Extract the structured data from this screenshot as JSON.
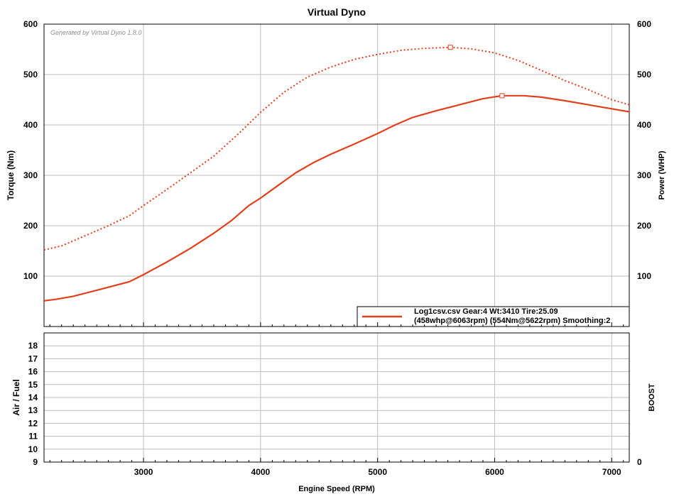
{
  "chart_data": [
    {
      "type": "line",
      "title": "Virtual Dyno",
      "watermark": "Generated by Virtual Dyno 1.8.0",
      "xlabel": "",
      "ylabel_left": "Torque (Nm)",
      "ylabel_right": "Power (WHP)",
      "xlim": [
        2150,
        7150
      ],
      "ylim": [
        0,
        600
      ],
      "x_ticks": [
        3000,
        4000,
        5000,
        6000,
        7000
      ],
      "y_ticks_left": [
        100,
        200,
        300,
        400,
        500,
        600
      ],
      "y_ticks_right": [
        100,
        200,
        300,
        400,
        500,
        600
      ],
      "grid": true,
      "legend_position": "bottom-right",
      "legend": {
        "line1": "Log1csv.csv Gear:4 Wt:3410 Tire:25.09",
        "line2": "(458whp@6063rpm)  (554Nm@5622rpm)  Smoothing:2"
      },
      "color": "#e0401c",
      "series": [
        {
          "style": "solid",
          "x": [
            2150,
            2250,
            2400,
            2600,
            2880,
            3000,
            3200,
            3400,
            3600,
            3750,
            3900,
            4000,
            4150,
            4300,
            4450,
            4600,
            4800,
            5000,
            5150,
            5300,
            5500,
            5700,
            5900,
            6063,
            6250,
            6400,
            6600,
            6800,
            7000,
            7150
          ],
          "y": [
            51,
            54,
            60,
            72,
            89,
            103,
            128,
            155,
            185,
            210,
            240,
            255,
            280,
            305,
            325,
            342,
            362,
            383,
            400,
            415,
            428,
            440,
            452,
            458,
            458,
            455,
            448,
            440,
            432,
            426
          ]
        },
        {
          "style": "dotted",
          "x": [
            2150,
            2300,
            2500,
            2700,
            2880,
            3000,
            3200,
            3400,
            3600,
            3800,
            4000,
            4200,
            4400,
            4600,
            4800,
            5000,
            5200,
            5400,
            5622,
            5800,
            6000,
            6200,
            6400,
            6600,
            6800,
            7000,
            7150
          ],
          "y": [
            152,
            160,
            180,
            200,
            220,
            240,
            272,
            305,
            338,
            380,
            425,
            465,
            495,
            515,
            530,
            540,
            548,
            552,
            554,
            551,
            543,
            528,
            508,
            488,
            470,
            450,
            440
          ]
        }
      ],
      "markers": [
        {
          "series": 0,
          "x": 6063,
          "y": 458
        },
        {
          "series": 1,
          "x": 5622,
          "y": 554
        }
      ]
    },
    {
      "type": "line",
      "title": "",
      "xlabel": "Engine Speed (RPM)",
      "ylabel_left": "Air / Fuel",
      "ylabel_right": "BOOST",
      "xlim": [
        2150,
        7150
      ],
      "ylim": [
        9,
        19
      ],
      "x_ticks": [
        3000,
        4000,
        5000,
        6000,
        7000
      ],
      "x_tick_labels": [
        "3000",
        "4000",
        "5000",
        "6000",
        "7000"
      ],
      "y_ticks_left": [
        9,
        10,
        11,
        12,
        13,
        14,
        15,
        16,
        17,
        18
      ],
      "y_tick_labels_left": [
        "9",
        "10",
        "11",
        "12",
        "13",
        "14",
        "15",
        "16",
        "17",
        "18"
      ],
      "y_tick_labels_right": [
        "0"
      ],
      "grid": true,
      "series": []
    }
  ]
}
